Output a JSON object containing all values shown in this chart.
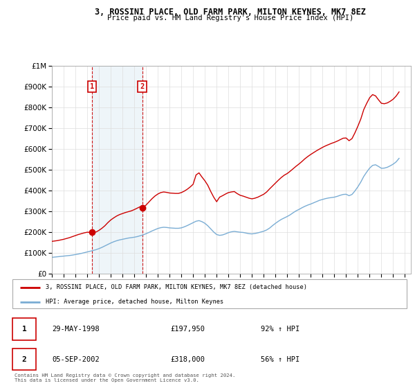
{
  "title": "3, ROSSINI PLACE, OLD FARM PARK, MILTON KEYNES, MK7 8EZ",
  "subtitle": "Price paid vs. HM Land Registry's House Price Index (HPI)",
  "hpi_label": "HPI: Average price, detached house, Milton Keynes",
  "property_label": "3, ROSSINI PLACE, OLD FARM PARK, MILTON KEYNES, MK7 8EZ (detached house)",
  "footnote": "Contains HM Land Registry data © Crown copyright and database right 2024.\nThis data is licensed under the Open Government Licence v3.0.",
  "transactions": [
    {
      "label": "1",
      "date_num": 1998.41,
      "price": 197950
    },
    {
      "label": "2",
      "date_num": 2002.67,
      "price": 318000
    }
  ],
  "transaction_rows": [
    {
      "num": "1",
      "date": "29-MAY-1998",
      "price": "£197,950",
      "hpi": "92% ↑ HPI"
    },
    {
      "num": "2",
      "date": "05-SEP-2002",
      "price": "£318,000",
      "hpi": "56% ↑ HPI"
    }
  ],
  "vline_dates": [
    1998.41,
    2002.67
  ],
  "vline_color": "#cc0000",
  "property_color": "#cc0000",
  "hpi_color": "#7aadd4",
  "ylim": [
    0,
    1000000
  ],
  "xlim": [
    1995.0,
    2025.5
  ],
  "yticks": [
    0,
    100000,
    200000,
    300000,
    400000,
    500000,
    600000,
    700000,
    800000,
    900000,
    1000000
  ],
  "background_color": "#ffffff",
  "grid_color": "#dddddd",
  "hpi_data_x": [
    1995.0,
    1995.25,
    1995.5,
    1995.75,
    1996.0,
    1996.25,
    1996.5,
    1996.75,
    1997.0,
    1997.25,
    1997.5,
    1997.75,
    1998.0,
    1998.25,
    1998.5,
    1998.75,
    1999.0,
    1999.25,
    1999.5,
    1999.75,
    2000.0,
    2000.25,
    2000.5,
    2000.75,
    2001.0,
    2001.25,
    2001.5,
    2001.75,
    2002.0,
    2002.25,
    2002.5,
    2002.75,
    2003.0,
    2003.25,
    2003.5,
    2003.75,
    2004.0,
    2004.25,
    2004.5,
    2004.75,
    2005.0,
    2005.25,
    2005.5,
    2005.75,
    2006.0,
    2006.25,
    2006.5,
    2006.75,
    2007.0,
    2007.25,
    2007.5,
    2007.75,
    2008.0,
    2008.25,
    2008.5,
    2008.75,
    2009.0,
    2009.25,
    2009.5,
    2009.75,
    2010.0,
    2010.25,
    2010.5,
    2010.75,
    2011.0,
    2011.25,
    2011.5,
    2011.75,
    2012.0,
    2012.25,
    2012.5,
    2012.75,
    2013.0,
    2013.25,
    2013.5,
    2013.75,
    2014.0,
    2014.25,
    2014.5,
    2014.75,
    2015.0,
    2015.25,
    2015.5,
    2015.75,
    2016.0,
    2016.25,
    2016.5,
    2016.75,
    2017.0,
    2017.25,
    2017.5,
    2017.75,
    2018.0,
    2018.25,
    2018.5,
    2018.75,
    2019.0,
    2019.25,
    2019.5,
    2019.75,
    2020.0,
    2020.25,
    2020.5,
    2020.75,
    2021.0,
    2021.25,
    2021.5,
    2021.75,
    2022.0,
    2022.25,
    2022.5,
    2022.75,
    2023.0,
    2023.25,
    2023.5,
    2023.75,
    2024.0,
    2024.25,
    2024.5
  ],
  "hpi_data_y": [
    78000,
    79500,
    81000,
    82500,
    84000,
    85500,
    87000,
    89000,
    91500,
    94000,
    97000,
    100500,
    104000,
    107500,
    111000,
    115000,
    120000,
    126000,
    133000,
    140000,
    147000,
    153000,
    158000,
    162000,
    165000,
    168000,
    171000,
    173000,
    175000,
    178000,
    182000,
    186000,
    192000,
    198000,
    205000,
    211000,
    217000,
    221000,
    223000,
    222000,
    220000,
    219000,
    218000,
    218000,
    220000,
    225000,
    231000,
    238000,
    245000,
    252000,
    255000,
    250000,
    242000,
    230000,
    215000,
    200000,
    188000,
    184000,
    186000,
    191000,
    197000,
    201000,
    203000,
    201000,
    199000,
    198000,
    195000,
    192000,
    191000,
    193000,
    196000,
    200000,
    204000,
    210000,
    219000,
    231000,
    242000,
    252000,
    261000,
    268000,
    275000,
    283000,
    293000,
    302000,
    309000,
    317000,
    324000,
    330000,
    335000,
    341000,
    347000,
    353000,
    357000,
    361000,
    364000,
    366000,
    368000,
    372000,
    377000,
    381000,
    382000,
    375000,
    381000,
    398000,
    418000,
    441000,
    468000,
    489000,
    508000,
    521000,
    524000,
    516000,
    507000,
    508000,
    512000,
    519000,
    527000,
    538000,
    555000
  ],
  "property_data_x": [
    1995.0,
    1995.25,
    1995.5,
    1995.75,
    1996.0,
    1996.25,
    1996.5,
    1996.75,
    1997.0,
    1997.25,
    1997.5,
    1997.75,
    1998.0,
    1998.25,
    1998.5,
    1998.75,
    1999.0,
    1999.25,
    1999.5,
    1999.75,
    2000.0,
    2000.25,
    2000.5,
    2000.75,
    2001.0,
    2001.25,
    2001.5,
    2001.75,
    2002.0,
    2002.25,
    2002.5,
    2002.75,
    2003.0,
    2003.25,
    2003.5,
    2003.75,
    2004.0,
    2004.25,
    2004.5,
    2004.75,
    2005.0,
    2005.25,
    2005.5,
    2005.75,
    2006.0,
    2006.25,
    2006.5,
    2006.75,
    2007.0,
    2007.25,
    2007.5,
    2007.75,
    2008.0,
    2008.25,
    2008.5,
    2008.75,
    2009.0,
    2009.25,
    2009.5,
    2009.75,
    2010.0,
    2010.25,
    2010.5,
    2010.75,
    2011.0,
    2011.25,
    2011.5,
    2011.75,
    2012.0,
    2012.25,
    2012.5,
    2012.75,
    2013.0,
    2013.25,
    2013.5,
    2013.75,
    2014.0,
    2014.25,
    2014.5,
    2014.75,
    2015.0,
    2015.25,
    2015.5,
    2015.75,
    2016.0,
    2016.25,
    2016.5,
    2016.75,
    2017.0,
    2017.25,
    2017.5,
    2017.75,
    2018.0,
    2018.25,
    2018.5,
    2018.75,
    2019.0,
    2019.25,
    2019.5,
    2019.75,
    2020.0,
    2020.25,
    2020.5,
    2020.75,
    2021.0,
    2021.25,
    2021.5,
    2021.75,
    2022.0,
    2022.25,
    2022.5,
    2022.75,
    2023.0,
    2023.25,
    2023.5,
    2023.75,
    2024.0,
    2024.25,
    2024.5
  ],
  "property_data_y": [
    155000,
    157000,
    159000,
    162000,
    165000,
    169000,
    173000,
    178000,
    183000,
    188000,
    192000,
    196000,
    199000,
    198500,
    197950,
    200000,
    208000,
    218000,
    230000,
    245000,
    258000,
    268000,
    277000,
    284000,
    289000,
    294000,
    298000,
    302000,
    308000,
    315000,
    322000,
    318000,
    330000,
    345000,
    360000,
    373000,
    383000,
    390000,
    393000,
    391000,
    388000,
    387000,
    386000,
    386000,
    390000,
    397000,
    406000,
    417000,
    430000,
    475000,
    485000,
    465000,
    447000,
    425000,
    395000,
    368000,
    346000,
    368000,
    375000,
    383000,
    390000,
    393000,
    395000,
    385000,
    377000,
    373000,
    368000,
    363000,
    360000,
    363000,
    368000,
    375000,
    382000,
    393000,
    408000,
    422000,
    436000,
    450000,
    463000,
    474000,
    482000,
    493000,
    505000,
    517000,
    528000,
    540000,
    553000,
    564000,
    574000,
    583000,
    592000,
    600000,
    608000,
    615000,
    621000,
    627000,
    632000,
    638000,
    645000,
    652000,
    653000,
    640000,
    650000,
    678000,
    710000,
    745000,
    790000,
    820000,
    847000,
    862000,
    856000,
    837000,
    820000,
    818000,
    822000,
    830000,
    840000,
    855000,
    875000
  ]
}
